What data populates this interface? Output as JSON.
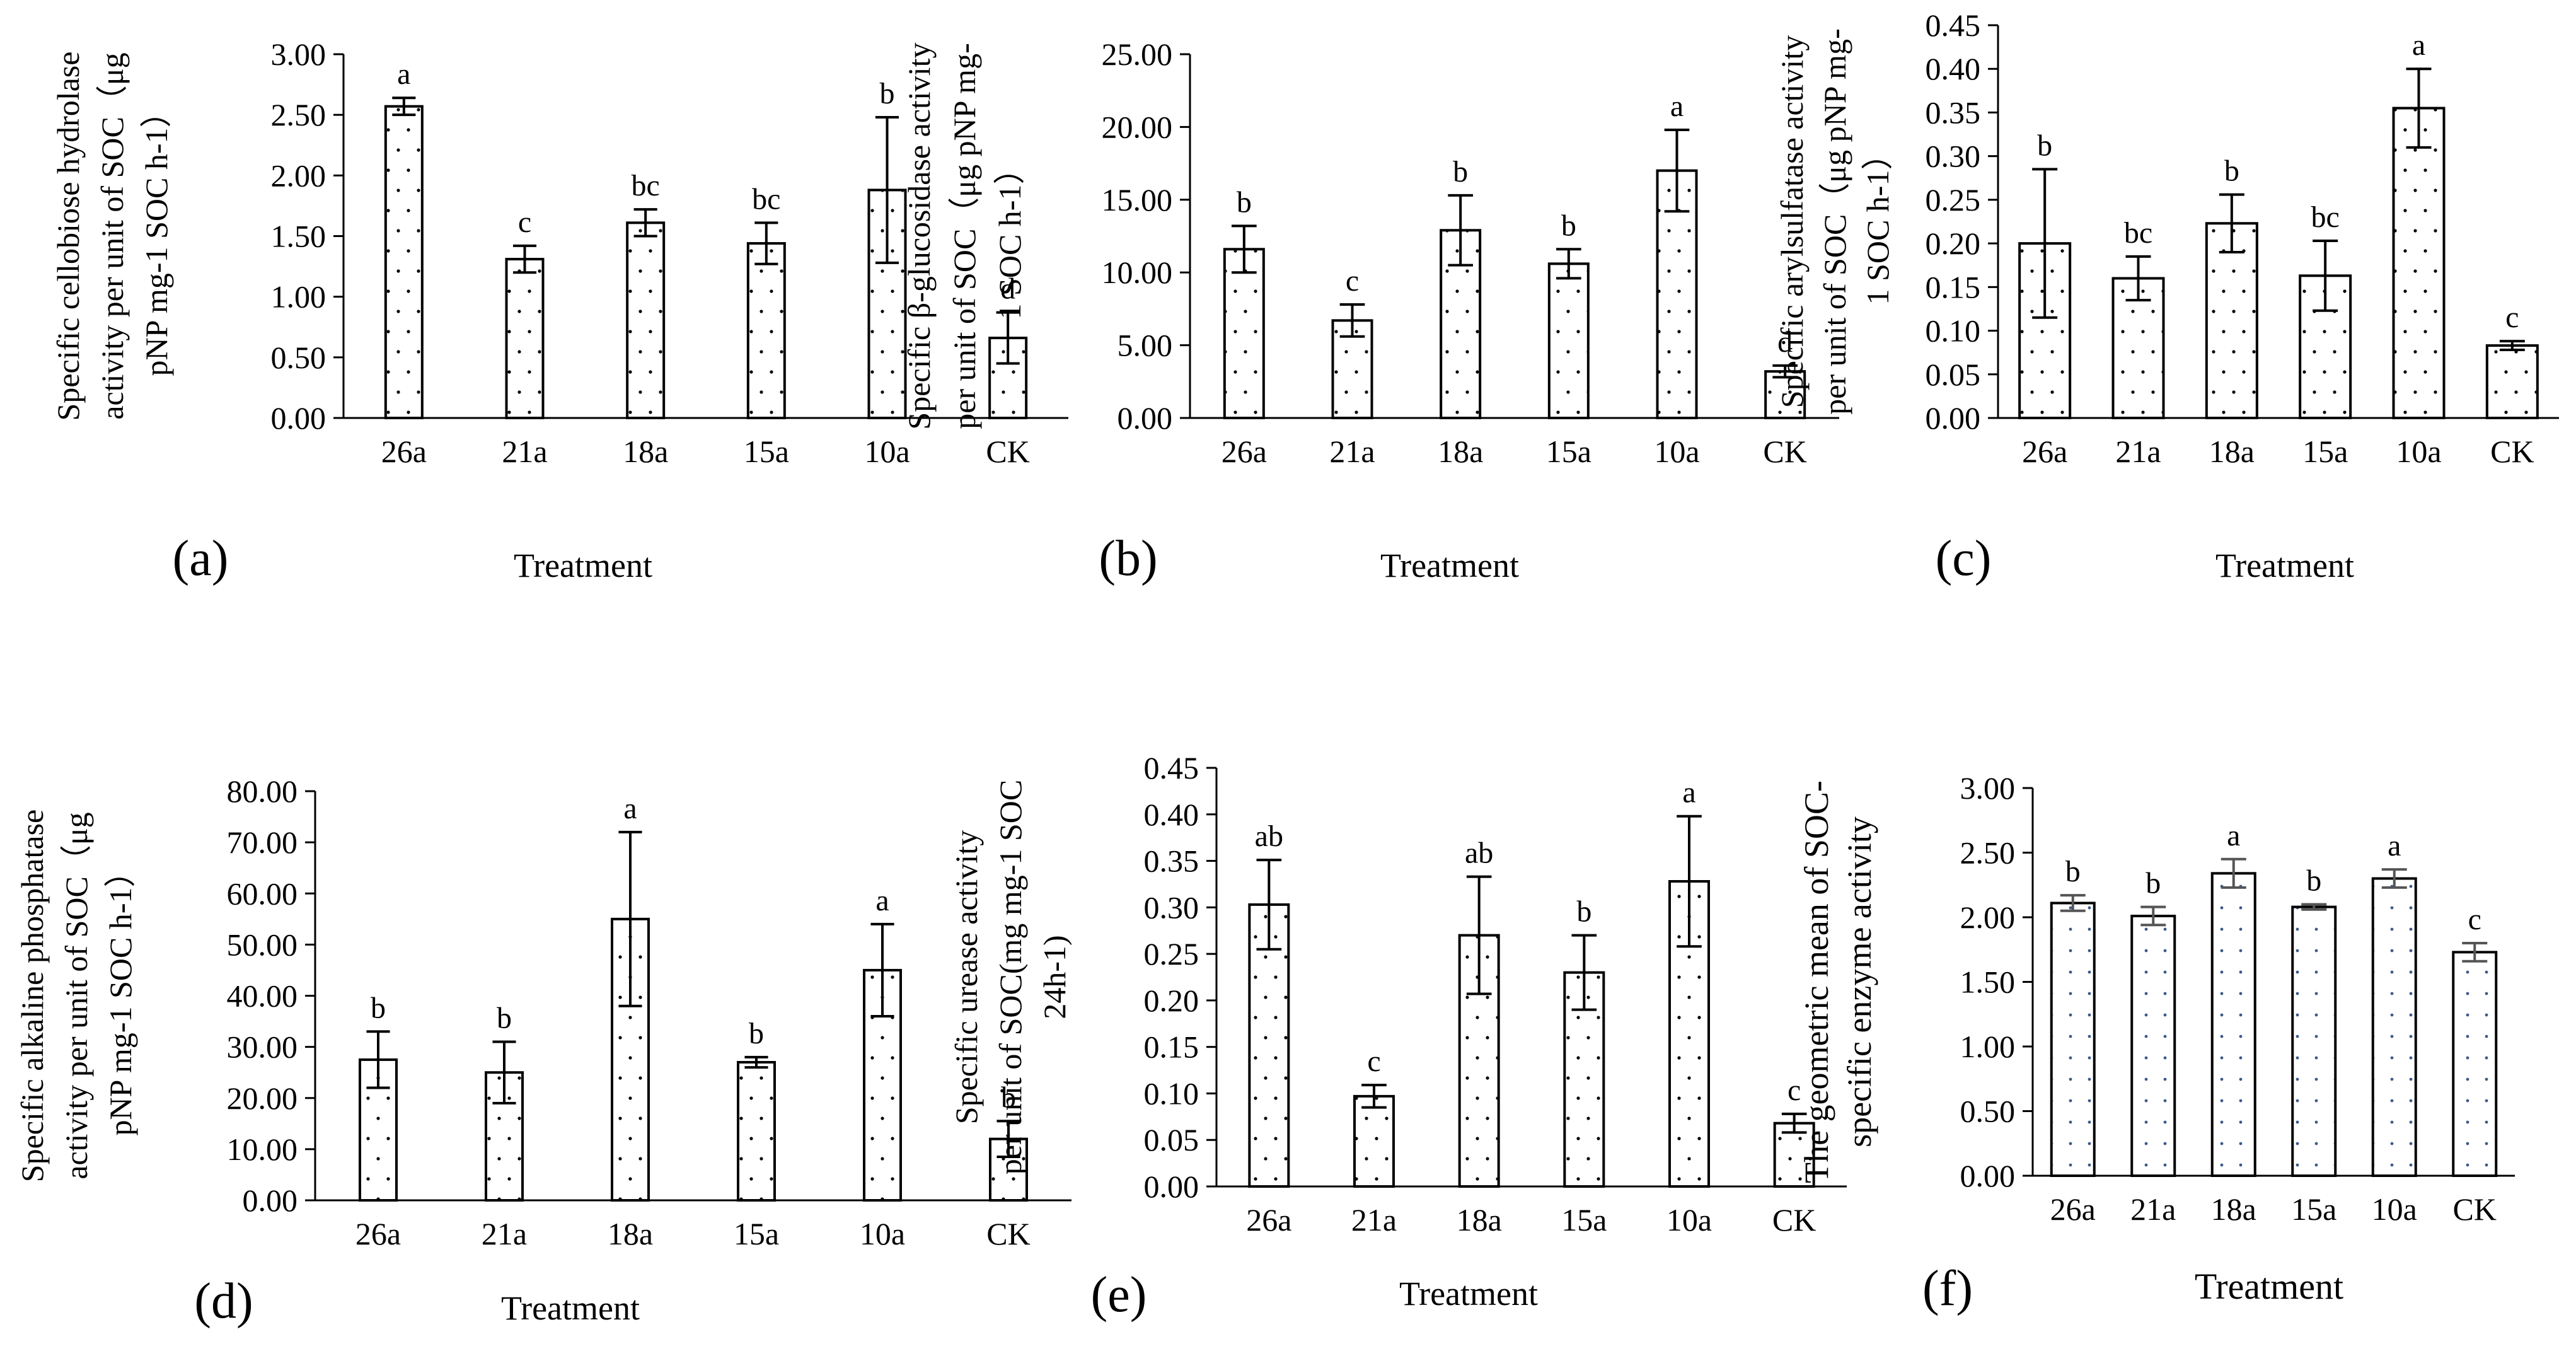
{
  "figure": {
    "common": {
      "categories": [
        "26a",
        "21a",
        "18a",
        "15a",
        "10a",
        "CK"
      ]
    },
    "colors": {
      "axis": "#000000",
      "bar_stroke": "#000000",
      "bar_fill": "#ffffff",
      "dots": "#000000",
      "dots_f": "#3a5a8a",
      "error_f": "#555555"
    }
  },
  "chart_data": [
    {
      "type": "bar",
      "panel_label": "(a)",
      "ylabel_lines": [
        "Specific cellobiose hydrolase",
        "activity per unit of SOC（μg",
        "pNP mg-1 SOC h-1）"
      ],
      "xlabel": "Treatment",
      "categories": [
        "26a",
        "21a",
        "18a",
        "15a",
        "10a",
        "CK"
      ],
      "values": [
        2.57,
        1.31,
        1.61,
        1.44,
        1.88,
        0.66
      ],
      "errors": [
        0.07,
        0.11,
        0.11,
        0.17,
        0.6,
        0.21
      ],
      "letters": [
        "a",
        "c",
        "bc",
        "bc",
        "b",
        "d"
      ],
      "ylim": [
        0,
        3
      ],
      "yticks": [
        "0.00",
        "0.50",
        "1.00",
        "1.50",
        "2.00",
        "2.50",
        "3.00"
      ]
    },
    {
      "type": "bar",
      "panel_label": "(b)",
      "ylabel_lines": [
        "Specific β-glucosidase activity",
        "per unit of SOC（μg pNP mg-",
        "1 SOC h-1）"
      ],
      "xlabel": "Treatment",
      "categories": [
        "26a",
        "21a",
        "18a",
        "15a",
        "10a",
        "CK"
      ],
      "values": [
        11.6,
        6.7,
        12.9,
        10.6,
        17.0,
        3.2
      ],
      "errors": [
        1.6,
        1.1,
        2.4,
        1.0,
        2.8,
        0.4
      ],
      "letters": [
        "b",
        "c",
        "b",
        "b",
        "a",
        "d"
      ],
      "ylim": [
        0,
        25
      ],
      "yticks": [
        "0.00",
        "5.00",
        "10.00",
        "15.00",
        "20.00",
        "25.00"
      ]
    },
    {
      "type": "bar",
      "panel_label": "(c)",
      "ylabel_lines": [
        "Specific arylsulfatase activity",
        "per unit of SOC（μg pNP mg-",
        "1 SOC h-1）"
      ],
      "xlabel": "Treatment",
      "categories": [
        "26a",
        "21a",
        "18a",
        "15a",
        "10a",
        "CK"
      ],
      "values": [
        0.2,
        0.16,
        0.223,
        0.163,
        0.355,
        0.083
      ],
      "errors": [
        0.085,
        0.025,
        0.033,
        0.04,
        0.045,
        0.005
      ],
      "letters": [
        "b",
        "bc",
        "b",
        "bc",
        "a",
        "c"
      ],
      "ylim": [
        0,
        0.45
      ],
      "yticks": [
        "0.00",
        "0.05",
        "0.10",
        "0.15",
        "0.20",
        "0.25",
        "0.30",
        "0.35",
        "0.40",
        "0.45"
      ]
    },
    {
      "type": "bar",
      "panel_label": "(d)",
      "ylabel_lines": [
        "Specific alkaline phosphatase",
        "activity per unit of SOC（μg",
        "pNP mg-1 SOC h-1）"
      ],
      "xlabel": "Treatment",
      "categories": [
        "26a",
        "21a",
        "18a",
        "15a",
        "10a",
        "CK"
      ],
      "values": [
        27.5,
        25.0,
        55.0,
        27.0,
        45.0,
        12.0
      ],
      "errors": [
        5.5,
        6.0,
        17.0,
        1.0,
        9.0,
        3.5
      ],
      "letters": [
        "b",
        "b",
        "a",
        "b",
        "a",
        "b"
      ],
      "ylim": [
        0,
        80
      ],
      "yticks": [
        "0.00",
        "10.00",
        "20.00",
        "30.00",
        "40.00",
        "50.00",
        "60.00",
        "70.00",
        "80.00"
      ]
    },
    {
      "type": "bar",
      "panel_label": "(e)",
      "ylabel_lines": [
        "Specific urease activity",
        "per unit of SOC(mg mg-1 SOC",
        "24h-1)"
      ],
      "xlabel": "Treatment",
      "categories": [
        "26a",
        "21a",
        "18a",
        "15a",
        "10a",
        "CK"
      ],
      "values": [
        0.303,
        0.097,
        0.27,
        0.23,
        0.328,
        0.068
      ],
      "errors": [
        0.048,
        0.012,
        0.063,
        0.04,
        0.07,
        0.01
      ],
      "letters": [
        "ab",
        "c",
        "ab",
        "b",
        "a",
        "c"
      ],
      "ylim": [
        0,
        0.45
      ],
      "yticks": [
        "0.00",
        "0.05",
        "0.10",
        "0.15",
        "0.20",
        "0.25",
        "0.30",
        "0.35",
        "0.40",
        "0.45"
      ]
    },
    {
      "type": "bar",
      "panel_label": "(f)",
      "ylabel_lines": [
        "The geometric mean of  SOC-",
        "specific enzyme activity"
      ],
      "xlabel": "Treatment",
      "categories": [
        "26a",
        "21a",
        "18a",
        "15a",
        "10a",
        "CK"
      ],
      "values": [
        2.11,
        2.01,
        2.34,
        2.08,
        2.3,
        1.73
      ],
      "errors": [
        0.06,
        0.07,
        0.11,
        0.02,
        0.07,
        0.07
      ],
      "letters": [
        "b",
        "b",
        "a",
        "b",
        "a",
        "c"
      ],
      "ylim": [
        0,
        3
      ],
      "yticks": [
        "0.00",
        "0.50",
        "1.00",
        "1.50",
        "2.00",
        "2.50",
        "3.00"
      ]
    }
  ]
}
